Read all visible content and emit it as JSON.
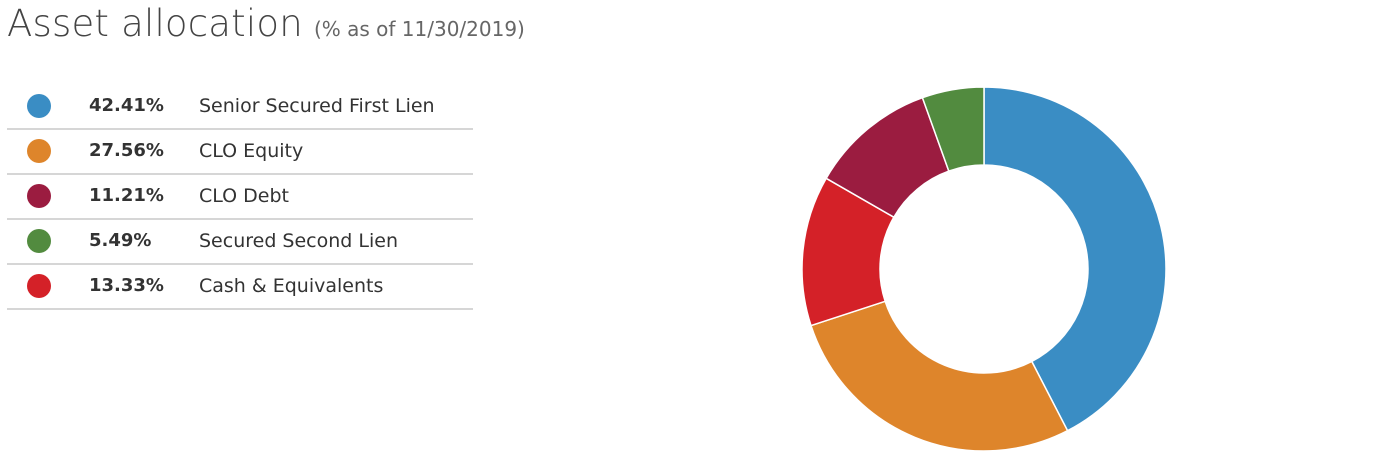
{
  "header": {
    "title": "Asset allocation",
    "subtitle": "(% as of 11/30/2019)"
  },
  "legend": [
    {
      "value": "42.41%",
      "label": "Senior Secured First Lien",
      "color": "#3a8dc4"
    },
    {
      "value": "27.56%",
      "label": "CLO Equity",
      "color": "#de852b"
    },
    {
      "value": "11.21%",
      "label": "CLO Debt",
      "color": "#9b1c40"
    },
    {
      "value": "5.49%",
      "label": "Secured Second Lien",
      "color": "#528b3f"
    },
    {
      "value": "13.33%",
      "label": "Cash & Equivalents",
      "color": "#d42128"
    }
  ],
  "chart_data": {
    "type": "pie",
    "variant": "donut",
    "title": "Asset allocation",
    "subtitle": "(% as of 11/30/2019)",
    "start_angle_deg": 0,
    "direction": "clockwise",
    "slice_order": [
      "Senior Secured First Lien",
      "CLO Equity",
      "Cash & Equivalents",
      "CLO Debt",
      "Secured Second Lien"
    ],
    "slices": [
      {
        "label": "Senior Secured First Lien",
        "value": 42.41,
        "color": "#3a8dc4"
      },
      {
        "label": "CLO Equity",
        "value": 27.56,
        "color": "#de852b"
      },
      {
        "label": "Cash & Equivalents",
        "value": 13.33,
        "color": "#d42128"
      },
      {
        "label": "CLO Debt",
        "value": 11.21,
        "color": "#9b1c40"
      },
      {
        "label": "Secured Second Lien",
        "value": 5.49,
        "color": "#528b3f"
      }
    ]
  }
}
